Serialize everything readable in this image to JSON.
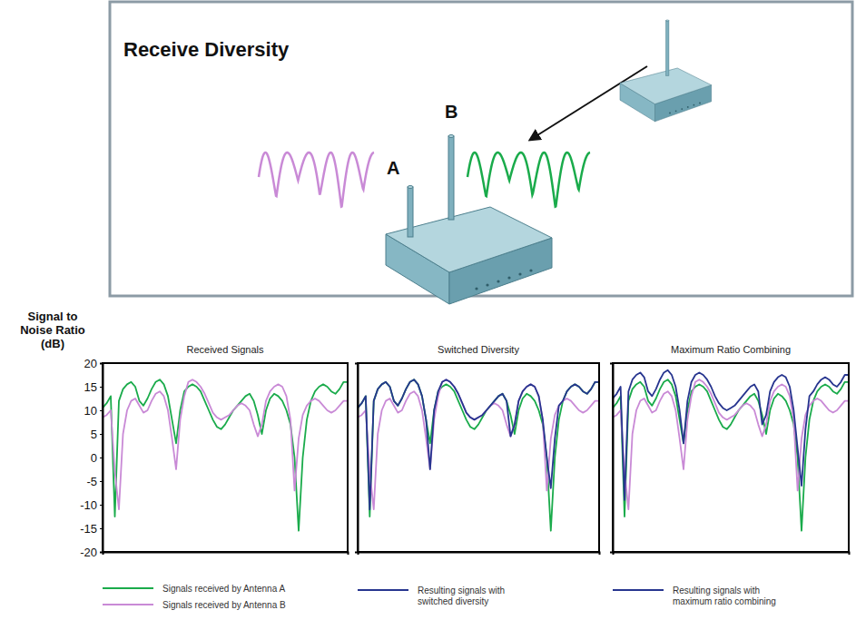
{
  "diagram": {
    "title": "Receive Diversity",
    "antenna_labels": [
      "A",
      "B"
    ]
  },
  "chart_data": [
    {
      "type": "line",
      "title": "Received Signals",
      "ylabel": "Signal to Noise Ratio (dB)",
      "x": [
        0,
        1,
        2,
        3,
        4,
        5,
        6,
        7,
        8,
        9,
        10,
        11,
        12,
        13,
        14,
        15,
        16,
        17,
        18,
        19,
        20,
        21,
        22,
        23,
        24,
        25,
        26,
        27,
        28,
        29,
        30,
        31,
        32,
        33,
        34,
        35,
        36,
        37,
        38,
        39,
        40,
        41,
        42,
        43,
        44,
        45,
        46,
        47,
        48,
        49,
        50,
        51,
        52,
        53,
        54,
        55,
        56,
        57,
        58,
        59,
        60
      ],
      "xlim": [
        0,
        60
      ],
      "ylim": [
        -20,
        20
      ],
      "yticks": [
        20,
        15,
        10,
        5,
        0,
        -5,
        -10,
        -15,
        -20
      ],
      "tick_labels": "y",
      "legend": "bottom",
      "series": [
        {
          "name": "Signals received by Antenna A",
          "color": "#1aab4b",
          "values": [
            10.5,
            11.5,
            13,
            -12.5,
            12,
            14.5,
            15.5,
            16,
            15,
            12,
            11,
            12.5,
            14.5,
            16,
            16.5,
            15.5,
            13,
            8,
            3,
            10,
            14,
            15,
            15.5,
            15,
            14,
            12,
            10,
            8,
            6.5,
            6,
            7,
            8.5,
            10,
            11,
            12,
            13,
            13.5,
            12,
            9,
            5,
            10,
            12.5,
            13.5,
            13,
            12,
            10,
            7,
            0,
            -15.5,
            0,
            8,
            12,
            14,
            15,
            15.5,
            15,
            14,
            13.5,
            14.5,
            16,
            16
          ]
        },
        {
          "name": "Signals received by Antenna B",
          "color": "#c98ad6",
          "values": [
            8.5,
            9,
            10,
            -3,
            -11,
            5,
            10,
            12,
            12.5,
            11,
            9.5,
            10,
            12,
            13.5,
            14,
            13,
            10,
            4,
            -2.5,
            8,
            13,
            16,
            16.5,
            16,
            15,
            13.5,
            11.5,
            9.5,
            8.5,
            8,
            8.5,
            9,
            10,
            11,
            11.5,
            11,
            10,
            7,
            4.5,
            7,
            12,
            14,
            15,
            15.5,
            15,
            13,
            8,
            -7,
            4,
            9,
            11,
            12,
            12.5,
            12,
            11,
            10,
            9.5,
            10,
            11,
            12,
            12
          ]
        }
      ]
    },
    {
      "type": "line",
      "title": "Switched Diversity",
      "x": [
        0,
        1,
        2,
        3,
        4,
        5,
        6,
        7,
        8,
        9,
        10,
        11,
        12,
        13,
        14,
        15,
        16,
        17,
        18,
        19,
        20,
        21,
        22,
        23,
        24,
        25,
        26,
        27,
        28,
        29,
        30,
        31,
        32,
        33,
        34,
        35,
        36,
        37,
        38,
        39,
        40,
        41,
        42,
        43,
        44,
        45,
        46,
        47,
        48,
        49,
        50,
        51,
        52,
        53,
        54,
        55,
        56,
        57,
        58,
        59,
        60
      ],
      "xlim": [
        0,
        60
      ],
      "ylim": [
        -20,
        20
      ],
      "tick_labels": false,
      "legend": "bottom",
      "series": [
        {
          "color": "#1aab4b",
          "values": [
            10.5,
            11.5,
            13,
            -12.5,
            12,
            14.5,
            15.5,
            16,
            15,
            12,
            11,
            12.5,
            14.5,
            16,
            16.5,
            15.5,
            13,
            8,
            3,
            10,
            14,
            15,
            15.5,
            15,
            14,
            12,
            10,
            8,
            6.5,
            6,
            7,
            8.5,
            10,
            11,
            12,
            13,
            13.5,
            12,
            9,
            5,
            10,
            12.5,
            13.5,
            13,
            12,
            10,
            7,
            0,
            -15.5,
            0,
            8,
            12,
            14,
            15,
            15.5,
            15,
            14,
            13.5,
            14.5,
            16,
            16
          ]
        },
        {
          "color": "#c98ad6",
          "values": [
            8.5,
            9,
            10,
            -3,
            -11,
            5,
            10,
            12,
            12.5,
            11,
            9.5,
            10,
            12,
            13.5,
            14,
            13,
            10,
            4,
            -2.5,
            8,
            13,
            16,
            16.5,
            16,
            15,
            13.5,
            11.5,
            9.5,
            8.5,
            8,
            8.5,
            9,
            10,
            11,
            11.5,
            11,
            10,
            7,
            4.5,
            7,
            12,
            14,
            15,
            15.5,
            15,
            13,
            8,
            -7,
            4,
            9,
            11,
            12,
            12.5,
            12,
            11,
            10,
            9.5,
            10,
            11,
            12,
            12
          ]
        },
        {
          "name": "Resulting signals with switched diversity",
          "color": "#27358f",
          "values": [
            10.5,
            11.5,
            13,
            -11,
            12,
            14.5,
            15.5,
            16,
            15,
            12,
            11,
            12.5,
            14.5,
            16,
            16.5,
            15.5,
            13,
            8,
            -2.5,
            10,
            14,
            16,
            16.5,
            16,
            15,
            13.5,
            11.5,
            9.5,
            8.5,
            8,
            8.5,
            9,
            10,
            11,
            12,
            13,
            13.5,
            12,
            4.5,
            7,
            12,
            14,
            15,
            15.5,
            15,
            13,
            8,
            0,
            -6.5,
            4,
            11,
            12,
            14,
            15,
            15.5,
            15,
            14,
            13.5,
            14.5,
            16,
            16
          ]
        }
      ]
    },
    {
      "type": "line",
      "title": "Maximum Ratio Combining",
      "x": [
        0,
        1,
        2,
        3,
        4,
        5,
        6,
        7,
        8,
        9,
        10,
        11,
        12,
        13,
        14,
        15,
        16,
        17,
        18,
        19,
        20,
        21,
        22,
        23,
        24,
        25,
        26,
        27,
        28,
        29,
        30,
        31,
        32,
        33,
        34,
        35,
        36,
        37,
        38,
        39,
        40,
        41,
        42,
        43,
        44,
        45,
        46,
        47,
        48,
        49,
        50,
        51,
        52,
        53,
        54,
        55,
        56,
        57,
        58,
        59,
        60
      ],
      "xlim": [
        0,
        60
      ],
      "ylim": [
        -20,
        20
      ],
      "tick_labels": false,
      "legend": "bottom",
      "series": [
        {
          "color": "#1aab4b",
          "values": [
            10.5,
            11.5,
            13,
            -12.5,
            12,
            14.5,
            15.5,
            16,
            15,
            12,
            11,
            12.5,
            14.5,
            16,
            16.5,
            15.5,
            13,
            8,
            3,
            10,
            14,
            15,
            15.5,
            15,
            14,
            12,
            10,
            8,
            6.5,
            6,
            7,
            8.5,
            10,
            11,
            12,
            13,
            13.5,
            12,
            9,
            5,
            10,
            12.5,
            13.5,
            13,
            12,
            10,
            7,
            0,
            -15.5,
            0,
            8,
            12,
            14,
            15,
            15.5,
            15,
            14,
            13.5,
            14.5,
            16,
            16
          ]
        },
        {
          "color": "#c98ad6",
          "values": [
            8.5,
            9,
            10,
            -3,
            -11,
            5,
            10,
            12,
            12.5,
            11,
            9.5,
            10,
            12,
            13.5,
            14,
            13,
            10,
            4,
            -2.5,
            8,
            13,
            16,
            16.5,
            16,
            15,
            13.5,
            11.5,
            9.5,
            8.5,
            8,
            8.5,
            9,
            10,
            11,
            11.5,
            11,
            10,
            7,
            4.5,
            7,
            12,
            14,
            15,
            15.5,
            15,
            13,
            8,
            -7,
            4,
            9,
            11,
            12,
            12.5,
            12,
            11,
            10,
            9.5,
            10,
            11,
            12,
            12
          ]
        },
        {
          "name": "Resulting signals with maximum ratio combining",
          "color": "#27358f",
          "values": [
            12.5,
            13.5,
            15,
            -9,
            14,
            16.5,
            17.5,
            18,
            17,
            14,
            13,
            14.5,
            16.5,
            18,
            18.5,
            17.5,
            15,
            10,
            3,
            12,
            16,
            17.5,
            18,
            17.5,
            16.5,
            15,
            13,
            11.5,
            10.5,
            10,
            10.5,
            11,
            12,
            13,
            14,
            15,
            15.5,
            14,
            7,
            9,
            14,
            16,
            17,
            17.5,
            17,
            15,
            10,
            2,
            -6,
            6,
            13,
            14,
            15.5,
            16.5,
            17,
            16.5,
            15.5,
            15,
            16,
            17.5,
            17.5
          ]
        }
      ]
    }
  ]
}
